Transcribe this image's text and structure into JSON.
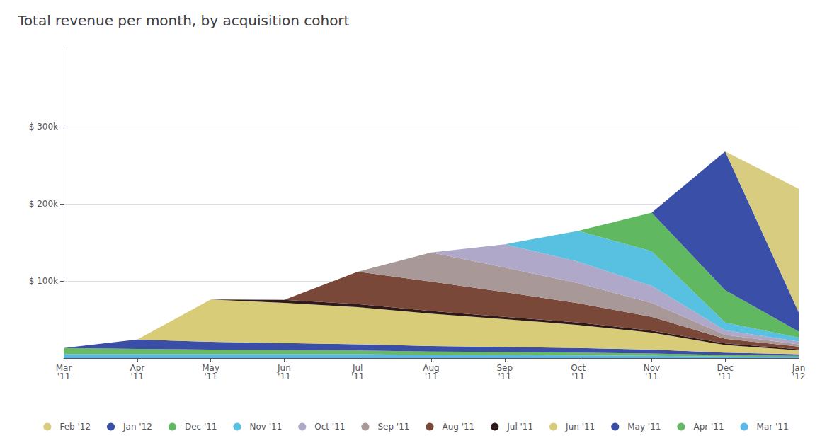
{
  "chart_data": {
    "type": "area",
    "title": "Total revenue per month, by acquisition cohort",
    "stacked": true,
    "categories": [
      "Mar\n'11",
      "Apr\n'11",
      "May\n'11",
      "Jun\n'11",
      "Jul\n'11",
      "Aug\n'11",
      "Sep\n'11",
      "Oct\n'11",
      "Nov\n'11",
      "Dec\n'11",
      "Jan\n'12"
    ],
    "series": [
      {
        "name": "Mar '11",
        "color": "#5ab8e8",
        "values": [
          5000,
          5000,
          5000,
          5000,
          5000,
          4000,
          4000,
          3500,
          3000,
          2000,
          1500
        ]
      },
      {
        "name": "Apr '11",
        "color": "#68b865",
        "values": [
          8000,
          7000,
          6000,
          5500,
          5000,
          4500,
          4000,
          3500,
          3000,
          2000,
          1500
        ]
      },
      {
        "name": "May '11",
        "color": "#3a4ea8",
        "values": [
          0,
          12000,
          10000,
          9000,
          8000,
          7000,
          6500,
          6000,
          5000,
          3000,
          2000
        ]
      },
      {
        "name": "Jun '11",
        "color": "#d8cc78",
        "values": [
          0,
          0,
          55000,
          52000,
          48000,
          42000,
          36000,
          30000,
          22000,
          10000,
          5000
        ]
      },
      {
        "name": "Jul '11",
        "color": "#2e1a1a",
        "values": [
          0,
          0,
          0,
          4000,
          4000,
          3500,
          3000,
          3000,
          2500,
          2000,
          1500
        ]
      },
      {
        "name": "Aug '11",
        "color": "#7a4838",
        "values": [
          0,
          0,
          0,
          0,
          42000,
          38000,
          32000,
          25000,
          18000,
          6000,
          3500
        ]
      },
      {
        "name": "Sep '11",
        "color": "#a89898",
        "values": [
          0,
          0,
          0,
          0,
          0,
          38000,
          32000,
          26000,
          18000,
          5000,
          3000
        ]
      },
      {
        "name": "Oct '11",
        "color": "#b0a8c8",
        "values": [
          0,
          0,
          0,
          0,
          0,
          0,
          30000,
          28000,
          22000,
          6000,
          3500
        ]
      },
      {
        "name": "Nov '11",
        "color": "#58c0e0",
        "values": [
          0,
          0,
          0,
          0,
          0,
          0,
          0,
          40000,
          45000,
          10000,
          5000
        ]
      },
      {
        "name": "Dec '11",
        "color": "#60b860",
        "values": [
          0,
          0,
          0,
          0,
          0,
          0,
          0,
          0,
          50000,
          42000,
          8000
        ]
      },
      {
        "name": "Jan '12",
        "color": "#3a50a8",
        "values": [
          0,
          0,
          0,
          0,
          0,
          0,
          0,
          0,
          0,
          180000,
          25000
        ]
      },
      {
        "name": "Feb '12",
        "color": "#d8cc80",
        "values": [
          0,
          0,
          0,
          0,
          0,
          0,
          0,
          0,
          0,
          0,
          160000
        ]
      }
    ],
    "ylim": [
      0,
      400000
    ],
    "yticks": [
      {
        "value": 100000,
        "label": "$ 100k"
      },
      {
        "value": 200000,
        "label": "$ 200k"
      },
      {
        "value": 300000,
        "label": "$ 300k"
      }
    ],
    "grid": true,
    "legend": "bottom"
  }
}
